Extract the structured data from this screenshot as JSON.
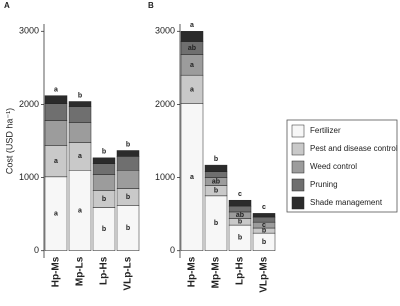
{
  "chart_data": [
    {
      "type": "bar",
      "stacked": true,
      "panel": "A",
      "ylabel": "Cost (USD ha⁻¹)",
      "categories": [
        "Hp-Ms",
        "Mp-Ls",
        "Lp-Hs",
        "VLp-Ls"
      ],
      "ylim": [
        -100,
        3100
      ],
      "yticks": [
        0,
        1000,
        2000,
        3000
      ],
      "series": [
        {
          "name": "Fertilizer",
          "color": "#f7f7f7",
          "values": [
            1010,
            1100,
            590,
            620
          ],
          "letters": [
            "a",
            "a",
            "b",
            "b"
          ]
        },
        {
          "name": "Pest and disease control",
          "color": "#c9c9c9",
          "values": [
            430,
            380,
            230,
            230
          ],
          "letters": [
            "a",
            "a",
            "b",
            "b"
          ]
        },
        {
          "name": "Weed control",
          "color": "#9c9c9c",
          "values": [
            340,
            270,
            220,
            250
          ],
          "letters": [
            null,
            null,
            null,
            null
          ]
        },
        {
          "name": "Pruning",
          "color": "#6f6f6f",
          "values": [
            230,
            220,
            150,
            190
          ],
          "letters": [
            null,
            null,
            null,
            null
          ]
        },
        {
          "name": "Shade management",
          "color": "#2b2b2b",
          "values": [
            110,
            70,
            80,
            80
          ],
          "letters": [
            null,
            null,
            null,
            null
          ]
        }
      ],
      "total_letters": [
        "a",
        "b",
        "b",
        "b"
      ]
    },
    {
      "type": "bar",
      "stacked": true,
      "panel": "B",
      "categories": [
        "Hp-Ms",
        "Mp-Ms",
        "Lp-Hs",
        "VLp-Ms"
      ],
      "ylim": [
        -100,
        3100
      ],
      "yticks": [
        0,
        1000,
        2000,
        3000
      ],
      "series": [
        {
          "color": "#f7f7f7",
          "values": [
            2010,
            750,
            350,
            240
          ],
          "letters": [
            "a",
            "b",
            "b",
            "b"
          ]
        },
        {
          "color": "#c9c9c9",
          "values": [
            390,
            140,
            90,
            70
          ],
          "letters": [
            "a",
            "b",
            "b",
            "b"
          ]
        },
        {
          "color": "#9c9c9c",
          "values": [
            280,
            110,
            90,
            80
          ],
          "letters": [
            "a",
            "ab",
            "ab",
            "c"
          ]
        },
        {
          "color": "#6f6f6f",
          "values": [
            180,
            80,
            80,
            70
          ],
          "letters": [
            "ab",
            null,
            null,
            null
          ]
        },
        {
          "color": "#2b2b2b",
          "values": [
            140,
            90,
            80,
            50
          ],
          "letters": [
            null,
            null,
            null,
            null
          ]
        }
      ],
      "total_letters": [
        "a",
        "b",
        "c",
        "c"
      ]
    }
  ]
}
